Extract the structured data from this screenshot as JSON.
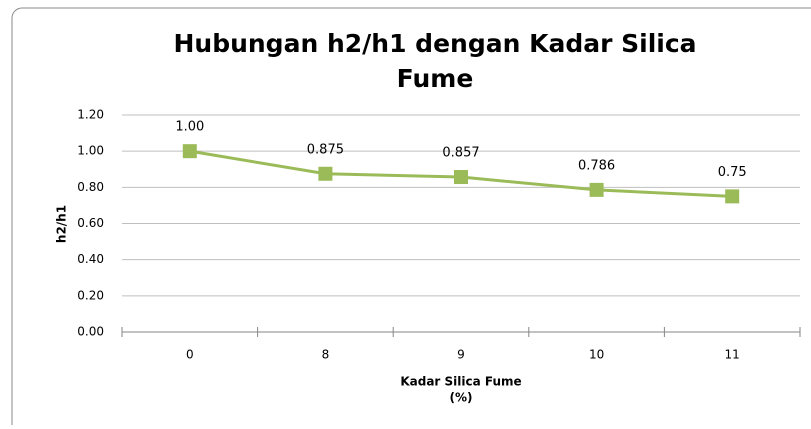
{
  "chart_data": {
    "type": "line",
    "title": [
      "Hubungan h2/h1 dengan Kadar Silica",
      "Fume"
    ],
    "x_label": [
      "Kadar Silica Fume",
      "(%)"
    ],
    "y_label": "h2/h1",
    "categories": [
      "0",
      "8",
      "9",
      "10",
      "11"
    ],
    "series": [
      {
        "name": "h2/h1",
        "color": "#9bbb59",
        "values": [
          1.0,
          0.875,
          0.857,
          0.786,
          0.75
        ],
        "value_labels": [
          "1.00",
          "0.875",
          "0.857",
          "0.786",
          "0.75"
        ]
      }
    ],
    "ylim": [
      0,
      1.2
    ],
    "yticks": [
      {
        "value": 0,
        "label": "0.00"
      },
      {
        "value": 0.2,
        "label": "0.20"
      },
      {
        "value": 0.4,
        "label": "0.40"
      },
      {
        "value": 0.6,
        "label": "0.60"
      },
      {
        "value": 0.8,
        "label": "0.80"
      },
      {
        "value": 1.0,
        "label": "1.00"
      },
      {
        "value": 1.2,
        "label": "1.20"
      }
    ],
    "grid": true
  }
}
